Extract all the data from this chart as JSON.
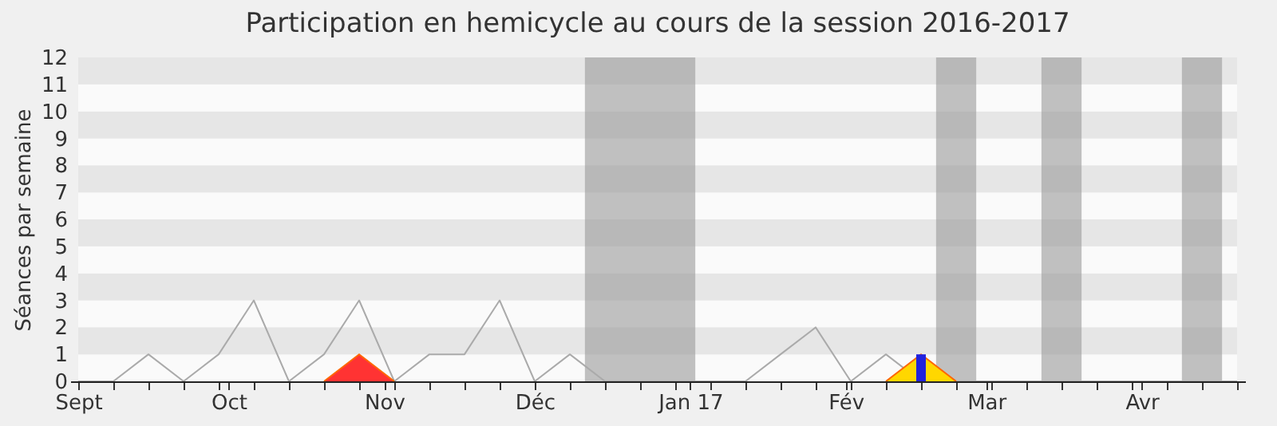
{
  "chart_data": {
    "type": "line",
    "title": "Participation en hemicycle au cours de la session 2016-2017",
    "ylabel": "Séances par semaine",
    "xlim": [
      "2016-09-01",
      "2017-04-20"
    ],
    "xticks": [
      {
        "value": "2016-09-01",
        "label": "Sept"
      },
      {
        "value": "2016-09-08",
        "label": null
      },
      {
        "value": "2016-09-15",
        "label": null
      },
      {
        "value": "2016-09-22",
        "label": null
      },
      {
        "value": "2016-09-29",
        "label": null
      },
      {
        "value": "2016-10-01",
        "label": "Oct"
      },
      {
        "value": "2016-10-06",
        "label": null
      },
      {
        "value": "2016-10-13",
        "label": null
      },
      {
        "value": "2016-10-20",
        "label": null
      },
      {
        "value": "2016-10-27",
        "label": null
      },
      {
        "value": "2016-11-01",
        "label": "Nov"
      },
      {
        "value": "2016-11-03",
        "label": null
      },
      {
        "value": "2016-11-10",
        "label": null
      },
      {
        "value": "2016-11-17",
        "label": null
      },
      {
        "value": "2016-11-24",
        "label": null
      },
      {
        "value": "2016-12-01",
        "label": "Déc"
      },
      {
        "value": "2016-12-08",
        "label": null
      },
      {
        "value": "2016-12-15",
        "label": null
      },
      {
        "value": "2016-12-22",
        "label": null
      },
      {
        "value": "2016-12-29",
        "label": null
      },
      {
        "value": "2017-01-01",
        "label": "Jan 17"
      },
      {
        "value": "2017-01-05",
        "label": null
      },
      {
        "value": "2017-01-12",
        "label": null
      },
      {
        "value": "2017-01-19",
        "label": null
      },
      {
        "value": "2017-01-26",
        "label": null
      },
      {
        "value": "2017-02-01",
        "label": "Fév"
      },
      {
        "value": "2017-02-02",
        "label": null
      },
      {
        "value": "2017-02-09",
        "label": null
      },
      {
        "value": "2017-02-16",
        "label": null
      },
      {
        "value": "2017-02-23",
        "label": null
      },
      {
        "value": "2017-03-01",
        "label": "Mar"
      },
      {
        "value": "2017-03-02",
        "label": null
      },
      {
        "value": "2017-03-09",
        "label": null
      },
      {
        "value": "2017-03-16",
        "label": null
      },
      {
        "value": "2017-03-23",
        "label": null
      },
      {
        "value": "2017-03-30",
        "label": null
      },
      {
        "value": "2017-04-01",
        "label": "Avr"
      },
      {
        "value": "2017-04-06",
        "label": null
      },
      {
        "value": "2017-04-13",
        "label": null
      },
      {
        "value": "2017-04-20",
        "label": null
      }
    ],
    "ylim": [
      0,
      12
    ],
    "yticks": [
      0,
      1,
      2,
      3,
      4,
      5,
      6,
      7,
      8,
      9,
      10,
      11,
      12
    ],
    "bands": [
      {
        "axis": "x",
        "from": "2016-12-11",
        "to": "2017-01-02",
        "color": "#999999"
      },
      {
        "axis": "x",
        "from": "2017-02-19",
        "to": "2017-02-27",
        "color": "#999999"
      },
      {
        "axis": "x",
        "from": "2017-03-12",
        "to": "2017-03-20",
        "color": "#999999"
      },
      {
        "axis": "x",
        "from": "2017-04-09",
        "to": "2017-04-17",
        "color": "#999999"
      }
    ],
    "series": [
      {
        "color": "#aaaaaa",
        "x": [
          "2016-09-01",
          "2016-09-08",
          "2016-09-15",
          "2016-09-22",
          "2016-09-29",
          "2016-10-06",
          "2016-10-13",
          "2016-10-20",
          "2016-10-27",
          "2016-11-03",
          "2016-11-10",
          "2016-11-17",
          "2016-11-24",
          "2016-12-01",
          "2016-12-08",
          "2016-12-15",
          "2016-12-22",
          "2016-12-29",
          "2017-01-05",
          "2017-01-12",
          "2017-01-19",
          "2017-01-26",
          "2017-02-02",
          "2017-02-09",
          "2017-02-16",
          "2017-02-23",
          "2017-03-02",
          "2017-03-09",
          "2017-03-16",
          "2017-03-23",
          "2017-03-30",
          "2017-04-06",
          "2017-04-13",
          "2017-04-20"
        ],
        "values": [
          0,
          0,
          1,
          0,
          1,
          3,
          0,
          1,
          3,
          0,
          1,
          1,
          3,
          0,
          1,
          0,
          0,
          0,
          0,
          0,
          1,
          2,
          0,
          1,
          0,
          0,
          0,
          0,
          0,
          0,
          0,
          0,
          0,
          0
        ]
      },
      {
        "type": "area",
        "color": "#ff3333",
        "x": [
          "2016-10-20",
          "2016-10-27",
          "2016-11-03"
        ],
        "values": [
          0,
          1,
          0
        ]
      },
      {
        "type": "area",
        "color": "#ffd700",
        "x": [
          "2017-02-09",
          "2017-02-16",
          "2017-02-23"
        ],
        "values": [
          0,
          1,
          0
        ]
      },
      {
        "type": "bar",
        "color": "#2222dd",
        "x": [
          "2017-02-16"
        ],
        "values": [
          1
        ]
      }
    ]
  }
}
